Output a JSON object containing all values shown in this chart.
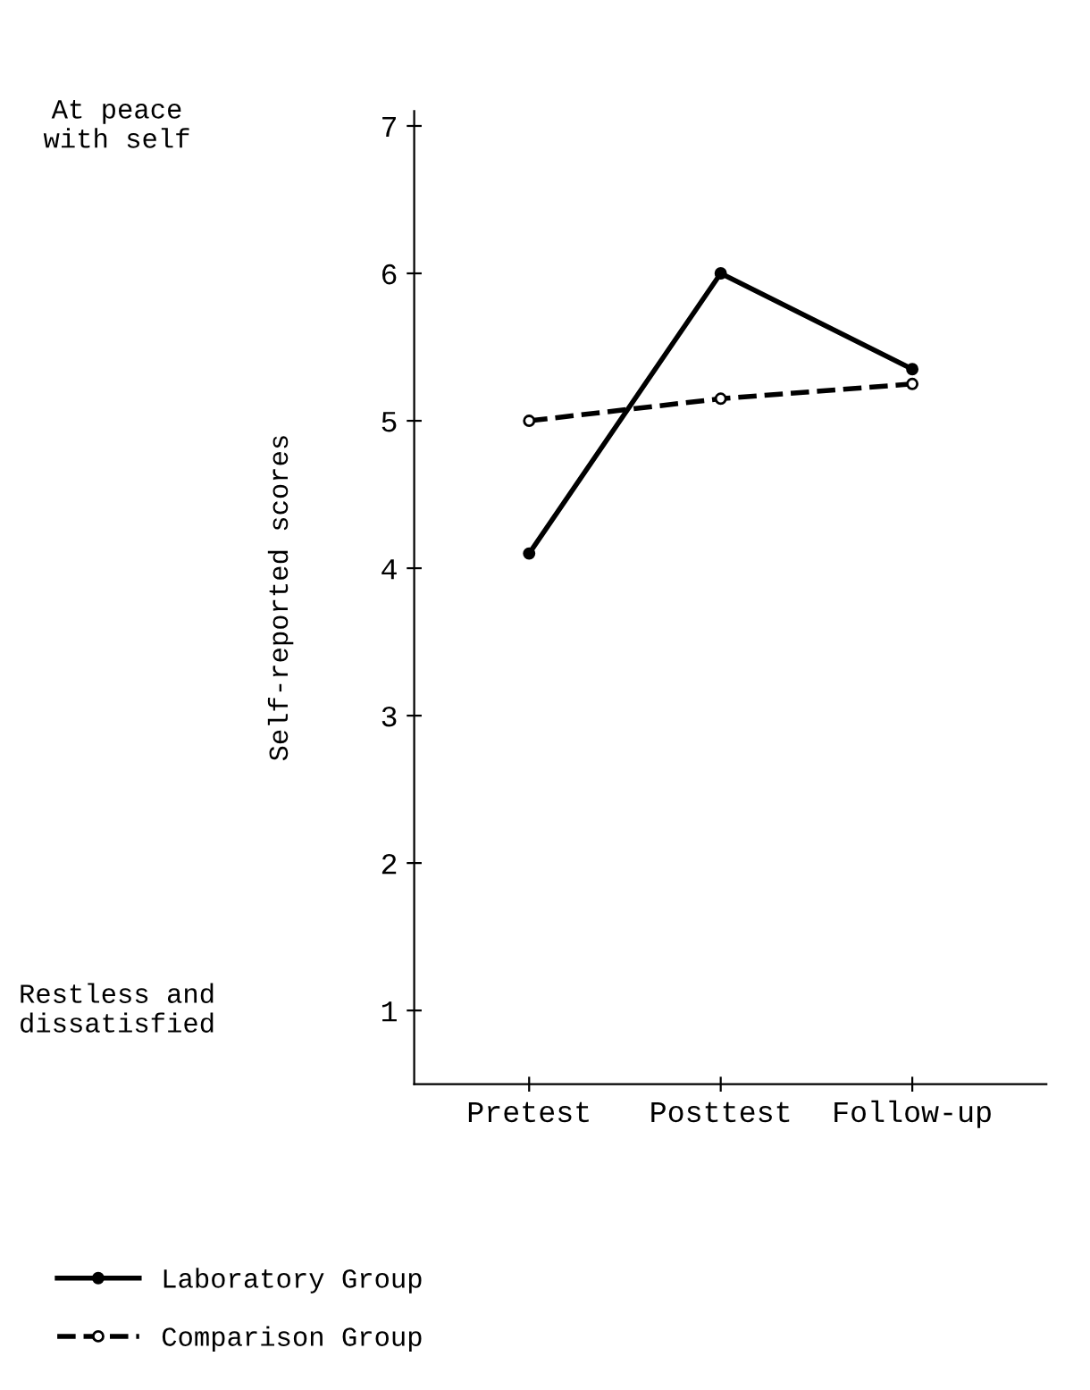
{
  "chart_data": {
    "type": "line",
    "ylabel": "Self-reported scores",
    "categories": [
      "Pretest",
      "Posttest",
      "Follow-up"
    ],
    "series": [
      {
        "name": "Laboratory Group",
        "color": "#000000",
        "values": [
          4.1,
          6.0,
          5.35
        ],
        "line_style": "solid"
      },
      {
        "name": "Comparison Group",
        "color": "#000000",
        "values": [
          5.0,
          5.15,
          5.25
        ],
        "line_style": "dashed"
      }
    ],
    "ylim": [
      0.5,
      7.1
    ],
    "yticks": [
      1,
      2,
      3,
      4,
      5,
      6,
      7
    ],
    "annotations": [
      "At peace\nwith self",
      "Restless and\ndissatisfied"
    ],
    "marker": "circle",
    "grid": false,
    "legend": "bottom left"
  }
}
